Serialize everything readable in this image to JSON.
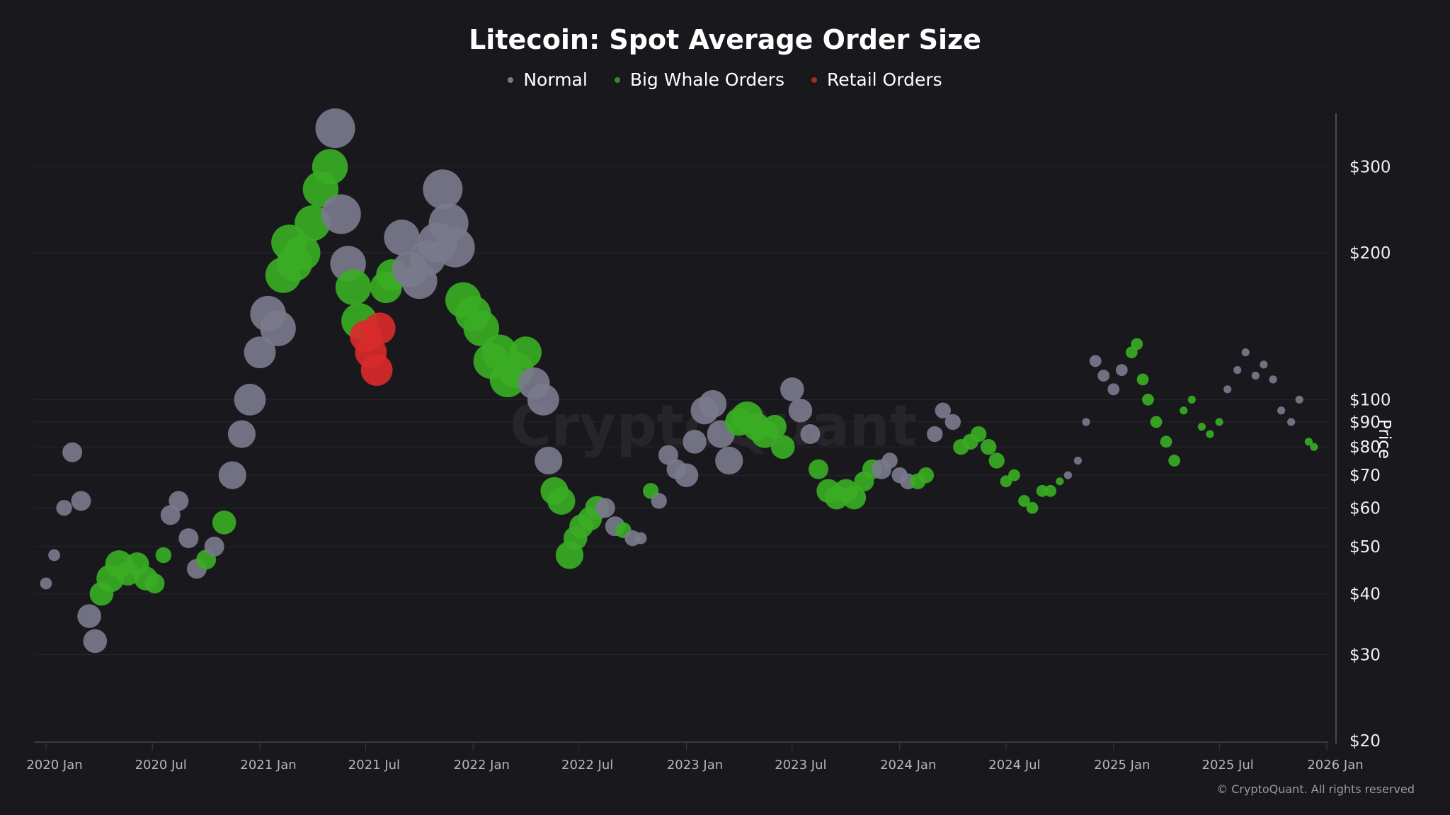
{
  "chart_data": {
    "type": "scatter",
    "title": "Litecoin: Spot Average Order Size",
    "ylabel": "Price",
    "xlabel": "",
    "yscale": "log",
    "ylim": [
      20,
      400
    ],
    "xlim": [
      "2019-12-15",
      "2026-01-20"
    ],
    "grid": true,
    "legend_position": "top-center",
    "watermark": "CryptoQuant",
    "copyright": "© CryptoQuant. All rights reserved",
    "legend": [
      {
        "key": "N",
        "name": "Normal",
        "color": "#7a7a8c"
      },
      {
        "key": "W",
        "name": "Big Whale Orders",
        "color": "#3aad24"
      },
      {
        "key": "R",
        "name": "Retail Orders",
        "color": "#d92a2a"
      }
    ],
    "y_ticks": [
      {
        "value": 20,
        "label": "$20"
      },
      {
        "value": 30,
        "label": "$30"
      },
      {
        "value": 40,
        "label": "$40"
      },
      {
        "value": 50,
        "label": "$50"
      },
      {
        "value": 60,
        "label": "$60"
      },
      {
        "value": 70,
        "label": "$70"
      },
      {
        "value": 80,
        "label": "$80"
      },
      {
        "value": 90,
        "label": "$90"
      },
      {
        "value": 100,
        "label": "$100"
      },
      {
        "value": 200,
        "label": "$200"
      },
      {
        "value": 300,
        "label": "$300"
      }
    ],
    "x_ticks": [
      {
        "date": "2020-01-01",
        "label": "2020 Jan"
      },
      {
        "date": "2020-07-01",
        "label": "2020 Jul"
      },
      {
        "date": "2021-01-01",
        "label": "2021 Jan"
      },
      {
        "date": "2021-07-01",
        "label": "2021 Jul"
      },
      {
        "date": "2022-01-01",
        "label": "2022 Jan"
      },
      {
        "date": "2022-07-01",
        "label": "2022 Jul"
      },
      {
        "date": "2023-01-01",
        "label": "2023 Jan"
      },
      {
        "date": "2023-07-01",
        "label": "2023 Jul"
      },
      {
        "date": "2024-01-01",
        "label": "2024 Jan"
      },
      {
        "date": "2024-07-01",
        "label": "2024 Jul"
      },
      {
        "date": "2025-01-01",
        "label": "2025 Jan"
      },
      {
        "date": "2025-07-01",
        "label": "2025 Jul"
      },
      {
        "date": "2026-01-01",
        "label": "2026 Jan"
      }
    ],
    "points_fields": [
      "date",
      "price",
      "relative_order_size",
      "category"
    ],
    "points": [
      [
        "2020-01-01",
        42,
        3,
        "N"
      ],
      [
        "2020-01-15",
        48,
        3,
        "N"
      ],
      [
        "2020-02-01",
        60,
        4,
        "N"
      ],
      [
        "2020-02-15",
        78,
        5,
        "N"
      ],
      [
        "2020-03-01",
        62,
        5,
        "N"
      ],
      [
        "2020-03-15",
        36,
        6,
        "N"
      ],
      [
        "2020-03-25",
        32,
        6,
        "N"
      ],
      [
        "2020-04-05",
        40,
        6,
        "W"
      ],
      [
        "2020-04-20",
        43,
        7,
        "W"
      ],
      [
        "2020-05-05",
        46,
        7,
        "W"
      ],
      [
        "2020-05-20",
        44,
        6,
        "W"
      ],
      [
        "2020-06-05",
        46,
        6,
        "W"
      ],
      [
        "2020-06-20",
        43,
        6,
        "W"
      ],
      [
        "2020-07-05",
        42,
        5,
        "W"
      ],
      [
        "2020-07-20",
        48,
        4,
        "W"
      ],
      [
        "2020-08-01",
        58,
        5,
        "N"
      ],
      [
        "2020-08-15",
        62,
        5,
        "N"
      ],
      [
        "2020-09-01",
        52,
        5,
        "N"
      ],
      [
        "2020-09-15",
        45,
        5,
        "N"
      ],
      [
        "2020-10-01",
        47,
        5,
        "W"
      ],
      [
        "2020-10-15",
        50,
        5,
        "N"
      ],
      [
        "2020-11-01",
        56,
        6,
        "W"
      ],
      [
        "2020-11-15",
        70,
        7,
        "N"
      ],
      [
        "2020-12-01",
        85,
        7,
        "N"
      ],
      [
        "2020-12-15",
        100,
        8,
        "N"
      ],
      [
        "2021-01-01",
        125,
        8,
        "N"
      ],
      [
        "2021-01-15",
        150,
        9,
        "N"
      ],
      [
        "2021-02-01",
        140,
        9,
        "N"
      ],
      [
        "2021-02-10",
        180,
        9,
        "W"
      ],
      [
        "2021-02-20",
        210,
        9,
        "W"
      ],
      [
        "2021-03-01",
        190,
        9,
        "W"
      ],
      [
        "2021-03-15",
        200,
        9,
        "W"
      ],
      [
        "2021-04-01",
        230,
        9,
        "W"
      ],
      [
        "2021-04-15",
        270,
        9,
        "W"
      ],
      [
        "2021-05-01",
        300,
        9,
        "W"
      ],
      [
        "2021-05-10",
        360,
        10,
        "N"
      ],
      [
        "2021-05-20",
        240,
        10,
        "N"
      ],
      [
        "2021-06-01",
        190,
        9,
        "N"
      ],
      [
        "2021-06-10",
        170,
        9,
        "W"
      ],
      [
        "2021-06-20",
        145,
        9,
        "W"
      ],
      [
        "2021-07-01",
        135,
        8,
        "R"
      ],
      [
        "2021-07-10",
        125,
        8,
        "R"
      ],
      [
        "2021-07-20",
        115,
        8,
        "R"
      ],
      [
        "2021-07-25",
        140,
        8,
        "R"
      ],
      [
        "2021-08-05",
        170,
        8,
        "W"
      ],
      [
        "2021-08-15",
        180,
        8,
        "W"
      ],
      [
        "2021-09-01",
        215,
        9,
        "N"
      ],
      [
        "2021-09-15",
        185,
        9,
        "N"
      ],
      [
        "2021-10-01",
        175,
        9,
        "N"
      ],
      [
        "2021-10-15",
        195,
        9,
        "N"
      ],
      [
        "2021-11-01",
        210,
        10,
        "N"
      ],
      [
        "2021-11-10",
        270,
        10,
        "N"
      ],
      [
        "2021-11-20",
        230,
        10,
        "N"
      ],
      [
        "2021-12-01",
        205,
        10,
        "N"
      ],
      [
        "2021-12-15",
        160,
        9,
        "W"
      ],
      [
        "2022-01-01",
        150,
        9,
        "W"
      ],
      [
        "2022-01-15",
        140,
        9,
        "W"
      ],
      [
        "2022-02-01",
        120,
        9,
        "W"
      ],
      [
        "2022-02-15",
        125,
        9,
        "W"
      ],
      [
        "2022-03-01",
        110,
        9,
        "W"
      ],
      [
        "2022-03-15",
        115,
        9,
        "W"
      ],
      [
        "2022-04-01",
        125,
        8,
        "W"
      ],
      [
        "2022-04-15",
        108,
        8,
        "N"
      ],
      [
        "2022-05-01",
        100,
        8,
        "N"
      ],
      [
        "2022-05-10",
        75,
        7,
        "N"
      ],
      [
        "2022-05-20",
        65,
        7,
        "W"
      ],
      [
        "2022-06-01",
        62,
        7,
        "W"
      ],
      [
        "2022-06-15",
        48,
        7,
        "W"
      ],
      [
        "2022-06-25",
        52,
        6,
        "W"
      ],
      [
        "2022-07-05",
        55,
        6,
        "W"
      ],
      [
        "2022-07-20",
        57,
        6,
        "W"
      ],
      [
        "2022-08-01",
        60,
        6,
        "W"
      ],
      [
        "2022-08-15",
        60,
        5,
        "N"
      ],
      [
        "2022-09-01",
        55,
        5,
        "N"
      ],
      [
        "2022-09-15",
        54,
        4,
        "W"
      ],
      [
        "2022-10-01",
        52,
        4,
        "N"
      ],
      [
        "2022-10-15",
        52,
        3,
        "N"
      ],
      [
        "2022-11-01",
        65,
        4,
        "W"
      ],
      [
        "2022-11-15",
        62,
        4,
        "N"
      ],
      [
        "2022-12-01",
        77,
        5,
        "N"
      ],
      [
        "2022-12-15",
        72,
        5,
        "N"
      ],
      [
        "2023-01-01",
        70,
        6,
        "N"
      ],
      [
        "2023-01-15",
        82,
        6,
        "N"
      ],
      [
        "2023-02-01",
        95,
        7,
        "N"
      ],
      [
        "2023-02-15",
        98,
        7,
        "N"
      ],
      [
        "2023-03-01",
        85,
        7,
        "N"
      ],
      [
        "2023-03-15",
        75,
        7,
        "N"
      ],
      [
        "2023-04-01",
        90,
        7,
        "W"
      ],
      [
        "2023-04-15",
        92,
        8,
        "W"
      ],
      [
        "2023-05-01",
        88,
        7,
        "W"
      ],
      [
        "2023-05-15",
        85,
        7,
        "W"
      ],
      [
        "2023-06-01",
        88,
        6,
        "W"
      ],
      [
        "2023-06-15",
        80,
        6,
        "W"
      ],
      [
        "2023-07-01",
        105,
        6,
        "N"
      ],
      [
        "2023-07-15",
        95,
        6,
        "N"
      ],
      [
        "2023-08-01",
        85,
        5,
        "N"
      ],
      [
        "2023-08-15",
        72,
        5,
        "W"
      ],
      [
        "2023-09-01",
        65,
        6,
        "W"
      ],
      [
        "2023-09-15",
        63,
        6,
        "W"
      ],
      [
        "2023-10-01",
        65,
        6,
        "W"
      ],
      [
        "2023-10-15",
        63,
        6,
        "W"
      ],
      [
        "2023-11-01",
        68,
        5,
        "W"
      ],
      [
        "2023-11-15",
        72,
        5,
        "W"
      ],
      [
        "2023-12-01",
        72,
        5,
        "N"
      ],
      [
        "2023-12-15",
        75,
        4,
        "N"
      ],
      [
        "2024-01-01",
        70,
        4,
        "N"
      ],
      [
        "2024-01-15",
        68,
        4,
        "N"
      ],
      [
        "2024-02-01",
        68,
        4,
        "W"
      ],
      [
        "2024-02-15",
        70,
        4,
        "W"
      ],
      [
        "2024-03-01",
        85,
        4,
        "N"
      ],
      [
        "2024-03-15",
        95,
        4,
        "N"
      ],
      [
        "2024-04-01",
        90,
        4,
        "N"
      ],
      [
        "2024-04-15",
        80,
        4,
        "W"
      ],
      [
        "2024-05-01",
        82,
        4,
        "W"
      ],
      [
        "2024-05-15",
        85,
        4,
        "W"
      ],
      [
        "2024-06-01",
        80,
        4,
        "W"
      ],
      [
        "2024-06-15",
        75,
        4,
        "W"
      ],
      [
        "2024-07-01",
        68,
        3,
        "W"
      ],
      [
        "2024-07-15",
        70,
        3,
        "W"
      ],
      [
        "2024-08-01",
        62,
        3,
        "W"
      ],
      [
        "2024-08-15",
        60,
        3,
        "W"
      ],
      [
        "2024-09-01",
        65,
        3,
        "W"
      ],
      [
        "2024-09-15",
        65,
        3,
        "W"
      ],
      [
        "2024-10-01",
        68,
        2,
        "W"
      ],
      [
        "2024-10-15",
        70,
        2,
        "N"
      ],
      [
        "2024-11-01",
        75,
        2,
        "N"
      ],
      [
        "2024-11-15",
        90,
        2,
        "N"
      ],
      [
        "2024-12-01",
        120,
        3,
        "N"
      ],
      [
        "2024-12-15",
        112,
        3,
        "N"
      ],
      [
        "2025-01-01",
        105,
        3,
        "N"
      ],
      [
        "2025-01-15",
        115,
        3,
        "N"
      ],
      [
        "2025-02-01",
        125,
        3,
        "W"
      ],
      [
        "2025-02-10",
        130,
        3,
        "W"
      ],
      [
        "2025-02-20",
        110,
        3,
        "W"
      ],
      [
        "2025-03-01",
        100,
        3,
        "W"
      ],
      [
        "2025-03-15",
        90,
        3,
        "W"
      ],
      [
        "2025-04-01",
        82,
        3,
        "W"
      ],
      [
        "2025-04-15",
        75,
        3,
        "W"
      ],
      [
        "2025-05-01",
        95,
        2,
        "W"
      ],
      [
        "2025-05-15",
        100,
        2,
        "W"
      ],
      [
        "2025-06-01",
        88,
        2,
        "W"
      ],
      [
        "2025-06-15",
        85,
        2,
        "W"
      ],
      [
        "2025-07-01",
        90,
        2,
        "W"
      ],
      [
        "2025-07-15",
        105,
        2,
        "N"
      ],
      [
        "2025-08-01",
        115,
        2,
        "N"
      ],
      [
        "2025-08-15",
        125,
        2,
        "N"
      ],
      [
        "2025-09-01",
        112,
        2,
        "N"
      ],
      [
        "2025-09-15",
        118,
        2,
        "N"
      ],
      [
        "2025-10-01",
        110,
        2,
        "N"
      ],
      [
        "2025-10-15",
        95,
        2,
        "N"
      ],
      [
        "2025-11-01",
        90,
        2,
        "N"
      ],
      [
        "2025-11-15",
        100,
        2,
        "N"
      ],
      [
        "2025-12-01",
        82,
        2,
        "W"
      ],
      [
        "2025-12-10",
        80,
        2,
        "W"
      ]
    ]
  }
}
